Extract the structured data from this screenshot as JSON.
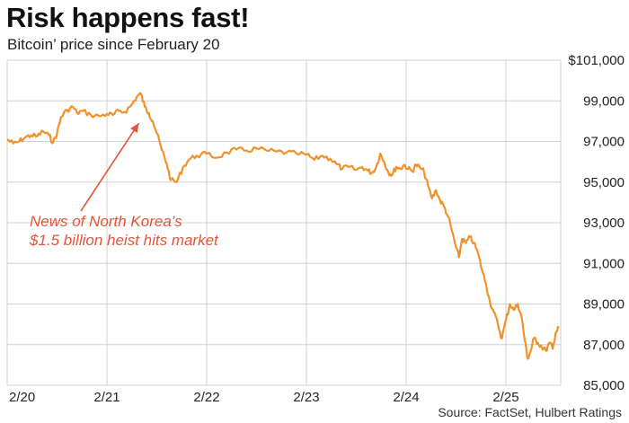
{
  "title": "Risk happens fast!",
  "subtitle": "Bitcoin’ price since February 20",
  "source": "Source: FactSet, Hulbert Ratings",
  "colors": {
    "line": "#f0922b",
    "grid": "#d0d0d0",
    "annotation": "#e2553a"
  },
  "chart_data": {
    "type": "line",
    "title": "Risk happens fast!",
    "subtitle": "Bitcoin’ price since February 20",
    "xlabel": "",
    "ylabel": "",
    "xlim": [
      0,
      5.55
    ],
    "ylim": [
      85000,
      101000
    ],
    "x_ticks": [
      {
        "x": 0,
        "label": "2/20"
      },
      {
        "x": 1,
        "label": "2/21"
      },
      {
        "x": 2,
        "label": "2/22"
      },
      {
        "x": 3,
        "label": "2/23"
      },
      {
        "x": 4,
        "label": "2/24"
      },
      {
        "x": 5,
        "label": "2/25"
      }
    ],
    "y_ticks": [
      {
        "y": 101000,
        "label": "$101,000"
      },
      {
        "y": 99000,
        "label": "99,000"
      },
      {
        "y": 97000,
        "label": "97,000"
      },
      {
        "y": 95000,
        "label": "95,000"
      },
      {
        "y": 93000,
        "label": "93,000"
      },
      {
        "y": 91000,
        "label": "91,000"
      },
      {
        "y": 89000,
        "label": "89,000"
      },
      {
        "y": 87000,
        "label": "87,000"
      },
      {
        "y": 85000,
        "label": "85,000"
      }
    ],
    "grid": true,
    "annotation": {
      "lines": [
        "News of North Korea’s",
        "$1.5 billion heist hits market"
      ],
      "x": 0.3,
      "y": 93100,
      "arrow_to": {
        "x": 1.32,
        "y": 97900
      }
    },
    "series": [
      {
        "values": [
          [
            0.0,
            97100
          ],
          [
            0.06,
            96900
          ],
          [
            0.12,
            97000
          ],
          [
            0.18,
            97200
          ],
          [
            0.24,
            97300
          ],
          [
            0.3,
            97250
          ],
          [
            0.36,
            97500
          ],
          [
            0.42,
            97300
          ],
          [
            0.46,
            96950
          ],
          [
            0.5,
            97400
          ],
          [
            0.54,
            98200
          ],
          [
            0.6,
            98550
          ],
          [
            0.66,
            98700
          ],
          [
            0.7,
            98400
          ],
          [
            0.76,
            98500
          ],
          [
            0.84,
            98300
          ],
          [
            0.92,
            98250
          ],
          [
            1.0,
            98350
          ],
          [
            1.06,
            98300
          ],
          [
            1.12,
            98500
          ],
          [
            1.18,
            98450
          ],
          [
            1.24,
            98750
          ],
          [
            1.3,
            99200
          ],
          [
            1.34,
            99350
          ],
          [
            1.38,
            98700
          ],
          [
            1.42,
            98400
          ],
          [
            1.46,
            98000
          ],
          [
            1.5,
            97400
          ],
          [
            1.55,
            96600
          ],
          [
            1.6,
            95900
          ],
          [
            1.64,
            95100
          ],
          [
            1.7,
            95000
          ],
          [
            1.76,
            95700
          ],
          [
            1.82,
            96100
          ],
          [
            1.9,
            96300
          ],
          [
            2.0,
            96400
          ],
          [
            2.1,
            96200
          ],
          [
            2.2,
            96450
          ],
          [
            2.3,
            96600
          ],
          [
            2.4,
            96550
          ],
          [
            2.5,
            96650
          ],
          [
            2.6,
            96550
          ],
          [
            2.7,
            96500
          ],
          [
            2.8,
            96450
          ],
          [
            2.9,
            96400
          ],
          [
            3.0,
            96350
          ],
          [
            3.08,
            96100
          ],
          [
            3.16,
            96300
          ],
          [
            3.24,
            96150
          ],
          [
            3.3,
            95900
          ],
          [
            3.36,
            95650
          ],
          [
            3.42,
            95750
          ],
          [
            3.5,
            95600
          ],
          [
            3.56,
            95750
          ],
          [
            3.62,
            95550
          ],
          [
            3.66,
            95450
          ],
          [
            3.7,
            95750
          ],
          [
            3.74,
            96400
          ],
          [
            3.78,
            96000
          ],
          [
            3.82,
            95500
          ],
          [
            3.86,
            95350
          ],
          [
            3.9,
            95750
          ],
          [
            3.94,
            95650
          ],
          [
            3.98,
            95850
          ],
          [
            4.02,
            95650
          ],
          [
            4.06,
            95550
          ],
          [
            4.1,
            95850
          ],
          [
            4.14,
            95700
          ],
          [
            4.18,
            95500
          ],
          [
            4.22,
            94800
          ],
          [
            4.26,
            94200
          ],
          [
            4.3,
            94600
          ],
          [
            4.34,
            94100
          ],
          [
            4.38,
            93800
          ],
          [
            4.42,
            93300
          ],
          [
            4.46,
            92600
          ],
          [
            4.5,
            91800
          ],
          [
            4.53,
            91300
          ],
          [
            4.56,
            92200
          ],
          [
            4.6,
            92000
          ],
          [
            4.64,
            92300
          ],
          [
            4.68,
            92000
          ],
          [
            4.72,
            91500
          ],
          [
            4.76,
            90700
          ],
          [
            4.8,
            90000
          ],
          [
            4.84,
            89100
          ],
          [
            4.88,
            88600
          ],
          [
            4.92,
            88000
          ],
          [
            4.96,
            87300
          ],
          [
            5.0,
            88200
          ],
          [
            5.04,
            89000
          ],
          [
            5.08,
            88700
          ],
          [
            5.12,
            89000
          ],
          [
            5.16,
            88300
          ],
          [
            5.19,
            87200
          ],
          [
            5.22,
            86300
          ],
          [
            5.25,
            86700
          ],
          [
            5.28,
            87300
          ],
          [
            5.32,
            87100
          ],
          [
            5.36,
            86900
          ],
          [
            5.4,
            86700
          ],
          [
            5.44,
            87100
          ],
          [
            5.47,
            86800
          ],
          [
            5.5,
            87600
          ],
          [
            5.53,
            87800
          ]
        ]
      }
    ]
  }
}
